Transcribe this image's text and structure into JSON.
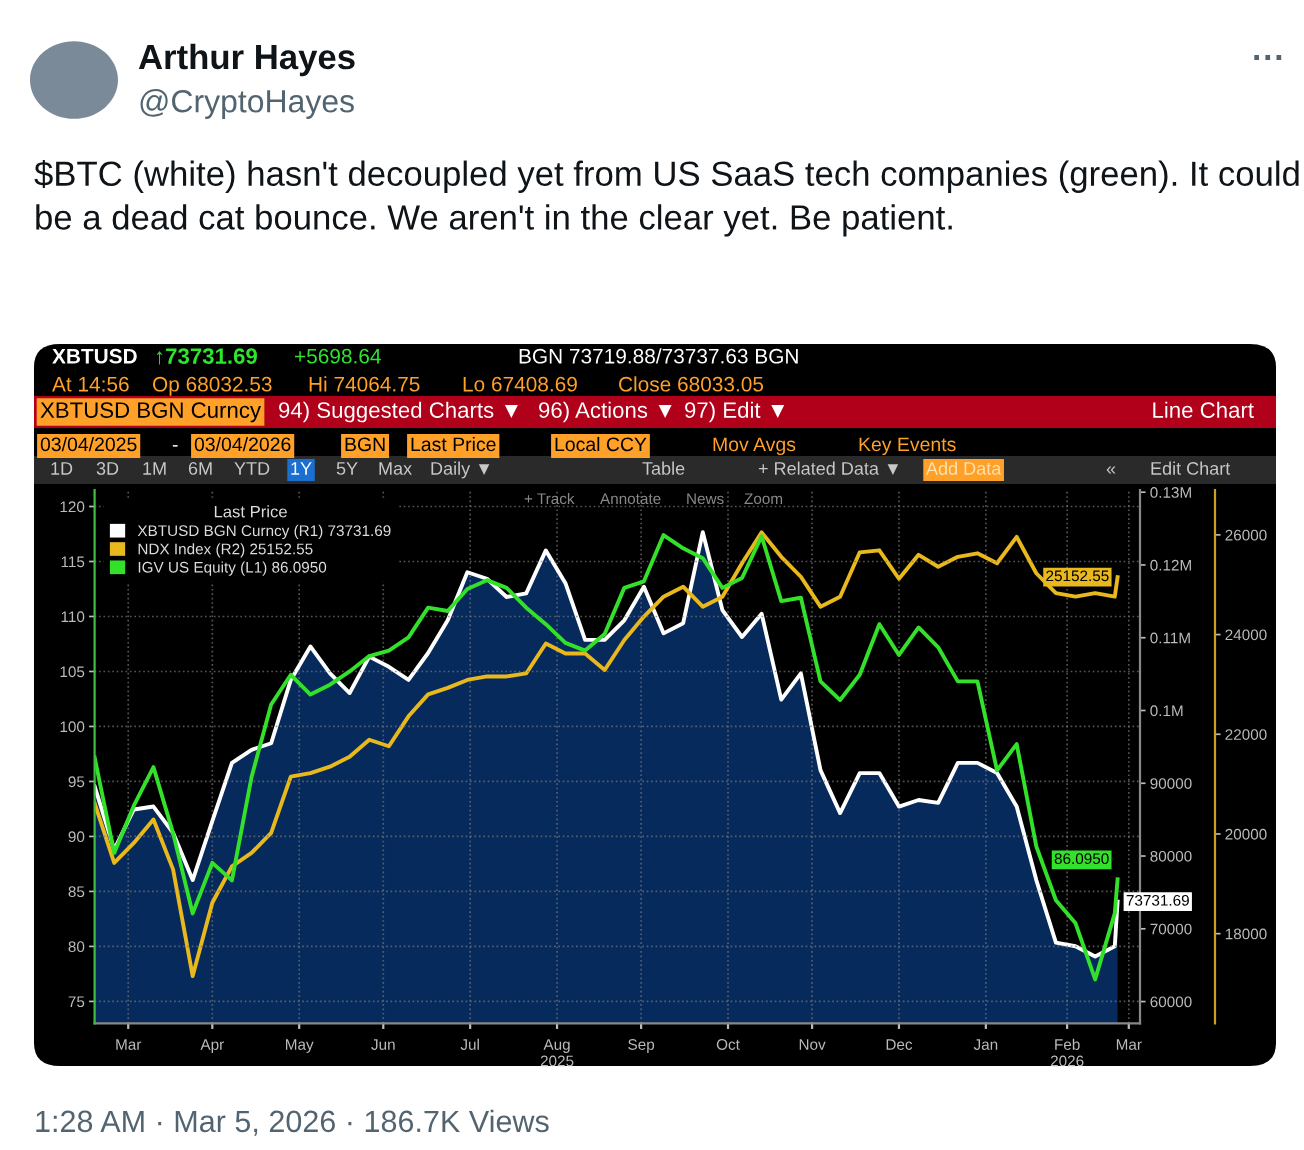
{
  "chart_data": {
    "type": "line",
    "title": "$BTC (white) hasn't decoupled yet from US SaaS tech companies (green). It could be a dead cat bounce. We aren't in the clear yet. Be patient.",
    "annotations": [
      "Arthur Hayes",
      "@CryptoHayes",
      "···",
      "1:28 AM · Mar 5, 2026 · 186.7K Views",
      "XBTUSD",
      "↑73731.69",
      "+5698.64",
      "BGN 73719.88/73737.63 BGN",
      "At 14:56",
      "Op 68032.53",
      "Hi 74064.75",
      "Lo 67408.69",
      "Close 68033.05",
      "XBTUSD BGN Curncy",
      "94) Suggested Charts ▼",
      "96) Actions ▼",
      "97) Edit ▼",
      "Line Chart",
      "03/04/2025",
      "-",
      "03/04/2026",
      "BGN",
      "Last Price",
      "Local CCY",
      "Mov Avgs",
      "Key Events",
      "1D",
      "3D",
      "1M",
      "6M",
      "YTD",
      "1Y",
      "5Y",
      "Max",
      "Daily ▼",
      "Table",
      "+ Related Data ▼",
      "Add Data",
      "«",
      "Edit Chart",
      "+ Track",
      "Annotate",
      "News",
      "Zoom"
    ],
    "x": [
      "2025-03-04",
      "2025-03-11",
      "2025-03-18",
      "2025-03-25",
      "2025-04-01",
      "2025-04-08",
      "2025-04-15",
      "2025-04-22",
      "2025-04-29",
      "2025-05-06",
      "2025-05-13",
      "2025-05-20",
      "2025-05-27",
      "2025-06-03",
      "2025-06-10",
      "2025-06-17",
      "2025-06-24",
      "2025-07-01",
      "2025-07-08",
      "2025-07-15",
      "2025-07-22",
      "2025-07-29",
      "2025-08-05",
      "2025-08-12",
      "2025-08-19",
      "2025-08-26",
      "2025-09-02",
      "2025-09-09",
      "2025-09-16",
      "2025-09-23",
      "2025-09-30",
      "2025-10-07",
      "2025-10-14",
      "2025-10-21",
      "2025-10-28",
      "2025-11-04",
      "2025-11-11",
      "2025-11-18",
      "2025-11-25",
      "2025-12-02",
      "2025-12-09",
      "2025-12-16",
      "2025-12-23",
      "2025-12-30",
      "2026-01-06",
      "2026-01-13",
      "2026-01-20",
      "2026-01-27",
      "2026-02-03",
      "2026-02-10",
      "2026-02-17",
      "2026-02-24",
      "2026-03-03",
      "2026-03-04"
    ],
    "xlim": [
      "2025-03-04",
      "2026-03-12"
    ],
    "xticks": [
      {
        "value": "2025-03-16",
        "label": "Mar"
      },
      {
        "value": "2025-04-15",
        "label": "Apr"
      },
      {
        "value": "2025-05-16",
        "label": "May"
      },
      {
        "value": "2025-06-15",
        "label": "Jun"
      },
      {
        "value": "2025-07-16",
        "label": "Jul"
      },
      {
        "value": "2025-08-16",
        "label": "Aug\n2025"
      },
      {
        "value": "2025-09-15",
        "label": "Sep"
      },
      {
        "value": "2025-10-16",
        "label": "Oct"
      },
      {
        "value": "2025-11-15",
        "label": "Nov"
      },
      {
        "value": "2025-12-16",
        "label": "Dec"
      },
      {
        "value": "2026-01-16",
        "label": "Jan"
      },
      {
        "value": "2026-02-14",
        "label": "Feb\n2026"
      },
      {
        "value": "2026-03-08",
        "label": "Mar"
      }
    ],
    "ylim": [
      73,
      121.5
    ],
    "yticks": [
      75,
      80,
      85,
      90,
      95,
      100,
      105,
      110,
      115,
      120
    ],
    "y2lim": [
      57000,
      130300
    ],
    "y2ticks": [
      60000,
      70000,
      80000,
      90000,
      {
        "value": 100000,
        "label": "0.1M"
      },
      {
        "value": 110000,
        "label": "0.11M"
      },
      {
        "value": 120000,
        "label": "0.12M"
      },
      {
        "value": 130000,
        "label": "0.13M"
      }
    ],
    "y3lim": [
      16200,
      26900
    ],
    "y3ticks": [
      18000,
      20000,
      22000,
      24000,
      26000
    ],
    "grid": true,
    "legend": "top left",
    "legend_title": "Last Price",
    "series": [
      {
        "name": "XBTUSD BGN Curncy (R1) 73731.69",
        "type": "area",
        "axis": "y2",
        "color": "#ffffff",
        "values": [
          89600,
          80900,
          86400,
          86800,
          83200,
          76700,
          84800,
          92800,
          94600,
          95500,
          104200,
          108800,
          105100,
          102400,
          107400,
          106000,
          104200,
          107900,
          112400,
          119000,
          118100,
          115600,
          116100,
          122000,
          117500,
          109700,
          109700,
          112400,
          117000,
          110600,
          112000,
          124500,
          113800,
          110100,
          113300,
          101500,
          105100,
          91800,
          85900,
          91400,
          91400,
          86800,
          87700,
          87300,
          92800,
          92800,
          91400,
          86800,
          76700,
          68100,
          67600,
          66200,
          67600,
          73731.69
        ],
        "value_labels": [
          null,
          null,
          null,
          null,
          null,
          null,
          null,
          null,
          null,
          null,
          null,
          null,
          null,
          null,
          null,
          null,
          null,
          null,
          null,
          null,
          null,
          null,
          null,
          null,
          null,
          null,
          null,
          null,
          null,
          null,
          null,
          null,
          null,
          null,
          null,
          null,
          null,
          null,
          null,
          null,
          null,
          null,
          null,
          null,
          null,
          null,
          null,
          null,
          null,
          null,
          null,
          null,
          null,
          "73731.69"
        ]
      },
      {
        "name": "NDX Index (R2) 25152.55",
        "axis": "y3",
        "color": "#e8b81c",
        "values": [
          20620,
          19420,
          19820,
          20290,
          19290,
          17150,
          18620,
          19350,
          19620,
          20020,
          21150,
          21220,
          21350,
          21550,
          21890,
          21760,
          22360,
          22800,
          22930,
          23090,
          23160,
          23160,
          23220,
          23820,
          23620,
          23620,
          23290,
          23890,
          24360,
          24760,
          24960,
          24560,
          24760,
          25430,
          26050,
          25560,
          25160,
          24560,
          24760,
          25650,
          25690,
          25120,
          25600,
          25360,
          25560,
          25630,
          25430,
          25960,
          25230,
          24830,
          24760,
          24830,
          24760,
          25152.55
        ],
        "value_labels": [
          null,
          null,
          null,
          null,
          null,
          null,
          null,
          null,
          null,
          null,
          null,
          null,
          null,
          null,
          null,
          null,
          null,
          null,
          null,
          null,
          null,
          null,
          null,
          null,
          null,
          null,
          null,
          null,
          null,
          null,
          null,
          null,
          null,
          null,
          null,
          null,
          null,
          null,
          null,
          null,
          null,
          null,
          null,
          null,
          null,
          null,
          null,
          null,
          null,
          null,
          null,
          null,
          null,
          "25152.55"
        ]
      },
      {
        "name": "IGV US Equity (L1) 86.0950",
        "axis": "y",
        "color": "#33e02a",
        "values": [
          97.2,
          88.5,
          92.8,
          96.3,
          90.3,
          83.0,
          87.6,
          86.0,
          95.4,
          102.0,
          104.7,
          102.9,
          103.8,
          105.0,
          106.4,
          106.9,
          108.1,
          110.8,
          110.5,
          112.5,
          113.3,
          112.6,
          110.8,
          109.3,
          107.6,
          106.9,
          108.4,
          112.6,
          113.2,
          117.4,
          116.2,
          115.3,
          112.6,
          113.5,
          117.3,
          111.4,
          111.7,
          104.1,
          102.4,
          104.7,
          109.3,
          106.5,
          109.0,
          107.2,
          104.1,
          104.1,
          96.0,
          98.4,
          89.1,
          84.2,
          82.1,
          77.0,
          83.0,
          86.095
        ],
        "value_labels": [
          null,
          null,
          null,
          null,
          null,
          null,
          null,
          null,
          null,
          null,
          null,
          null,
          null,
          null,
          null,
          null,
          null,
          null,
          null,
          null,
          null,
          null,
          null,
          null,
          null,
          null,
          null,
          null,
          null,
          null,
          null,
          null,
          null,
          null,
          null,
          null,
          null,
          null,
          null,
          null,
          null,
          null,
          null,
          null,
          null,
          null,
          null,
          null,
          null,
          null,
          null,
          null,
          null,
          "86.0950"
        ]
      }
    ]
  }
}
